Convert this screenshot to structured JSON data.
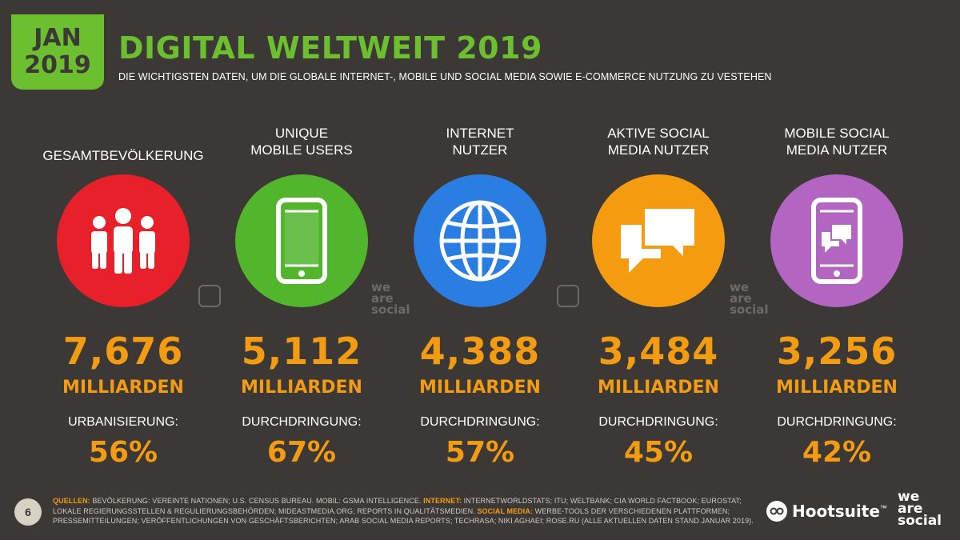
{
  "badge": {
    "month": "JAN",
    "year": "2019"
  },
  "title": "DIGITAL WELTWEIT 2019",
  "subtitle": "DIE WICHTIGSTEN DATEN, UM DIE GLOBALE INTERNET-, MOBILE UND SOCIAL MEDIA SOWIE E-COMMERCE NUTZUNG ZU VESTEHEN",
  "columns": [
    {
      "label_1": "GESAMTBEVÖLKERUNG",
      "label_2": "",
      "icon": "people-icon",
      "color": "#e8202a",
      "value": "7,676",
      "unit": "MILLIARDEN",
      "metric_label": "URBANISIERUNG:",
      "metric_value": "56%"
    },
    {
      "label_1": "UNIQUE",
      "label_2": "MOBILE USERS",
      "icon": "mobile-phone-icon",
      "color": "#52b62c",
      "value": "5,112",
      "unit": "MILLIARDEN",
      "metric_label": "DURCHDRINGUNG:",
      "metric_value": "67%"
    },
    {
      "label_1": "INTERNET",
      "label_2": "NUTZER",
      "icon": "globe-icon",
      "color": "#2a7de1",
      "value": "4,388",
      "unit": "MILLIARDEN",
      "metric_label": "DURCHDRINGUNG:",
      "metric_value": "57%"
    },
    {
      "label_1": "AKTIVE SOCIAL",
      "label_2": "MEDIA NUTZER",
      "icon": "chat-bubbles-icon",
      "color": "#f59b10",
      "value": "3,484",
      "unit": "MILLIARDEN",
      "metric_label": "DURCHDRINGUNG:",
      "metric_value": "45%"
    },
    {
      "label_1": "MOBILE SOCIAL",
      "label_2": "MEDIA NUTZER",
      "icon": "mobile-chat-icon",
      "color": "#b266c2",
      "value": "3,256",
      "unit": "MILLIARDEN",
      "metric_label": "DURCHDRINGUNG:",
      "metric_value": "42%"
    }
  ],
  "footer": {
    "page_number": "6",
    "src_quellen_label": "QUELLEN:",
    "src_quellen_text": " BEVÖLKERUNG: VEREINTE NATIONEN; U.S. CENSUS BUREAU. MOBIL: GSMA INTELLIGENCE. ",
    "src_internet_label": "INTERNET:",
    "src_internet_text": " INTERNETWORLDSTATS; ITU; WELTBANK; CIA WORLD FACTBOOK; EUROSTAT; LOKALE REGIERUNGSSTELLEN & REGULIERUNGSBEHÖRDEN; MIDEASTMEDIA.ORG; REPORTS IN QUALITÄTSMEDIEN. ",
    "src_social_label": "SOCIAL MEDIA:",
    "src_social_text": " WERBE-TOOLS DER VERSCHIEDENEN PLATTFORMEN; PRESSEMITTEILUNGEN; VERÖFFENTLICHUNGEN VON GESCHÄFTSBERICHTEN; ARAB SOCIAL MEDIA REPORTS; TECHRASA; NIKI AGHAEI; ROSE.RU (ALLE AKTUELLEN DATEN STAND JANUAR 2019).",
    "hootsuite": "Hootsuite",
    "tm": "™",
    "was_1": "we",
    "was_2": "are",
    "was_3": "social"
  },
  "watermark": {
    "was_1": "we",
    "was_2": "are",
    "was_3": "social"
  }
}
